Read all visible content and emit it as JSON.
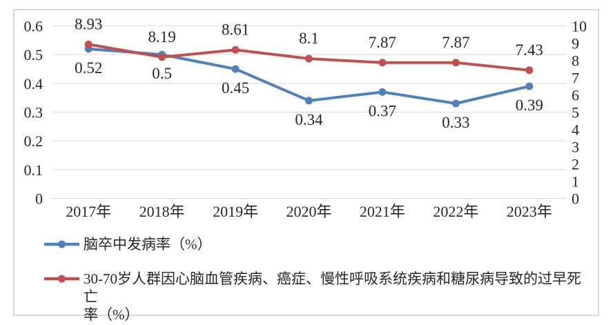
{
  "chart_data": {
    "type": "line",
    "title": "",
    "categories": [
      "2017年",
      "2018年",
      "2019年",
      "2020年",
      "2021年",
      "2022年",
      "2023年"
    ],
    "series": [
      {
        "name": "脑卒中发病率（%）",
        "axis": "left",
        "color": "#4F81BD",
        "values": [
          0.52,
          0.5,
          0.45,
          0.34,
          0.37,
          0.33,
          0.39
        ],
        "labels": [
          "0.52",
          "0.5",
          "0.45",
          "0.34",
          "0.37",
          "0.33",
          "0.39"
        ],
        "label_position": "below",
        "marker": "circle"
      },
      {
        "name": "30-70岁人群因心脑血管疾病、癌症、慢性呼吸系统疾病和糖尿病导致的过早死亡率（%）",
        "axis": "right",
        "color": "#C0504D",
        "values": [
          8.93,
          8.19,
          8.61,
          8.1,
          7.87,
          7.87,
          7.43
        ],
        "labels": [
          "8.93",
          "8.19",
          "8.61",
          "8.1",
          "7.87",
          "7.87",
          "7.43"
        ],
        "label_position": "above",
        "marker": "circle"
      }
    ],
    "left_axis": {
      "min": 0,
      "max": 0.6,
      "step": 0.1,
      "ticks": [
        "0",
        "0.1",
        "0.2",
        "0.3",
        "0.4",
        "0.5",
        "0.6"
      ]
    },
    "right_axis": {
      "min": 0,
      "max": 10,
      "step": 1,
      "ticks": [
        "0",
        "1",
        "2",
        "3",
        "4",
        "5",
        "6",
        "7",
        "8",
        "9",
        "10"
      ]
    },
    "grid": true,
    "legend_position": "bottom-left",
    "colors": {
      "grid": "#D9D9D9",
      "frame_border": "#D9D9D9",
      "text": "#262626"
    }
  },
  "legend": {
    "items": [
      {
        "color": "#4F81BD",
        "label_lines": [
          "脑卒中发病率（%）"
        ]
      },
      {
        "color": "#C0504D",
        "label_lines": [
          "30-70岁人群因心脑血管疾病、癌症、慢性呼吸系统疾病和糖尿病导致的过早死亡",
          "率（%）"
        ]
      }
    ]
  }
}
